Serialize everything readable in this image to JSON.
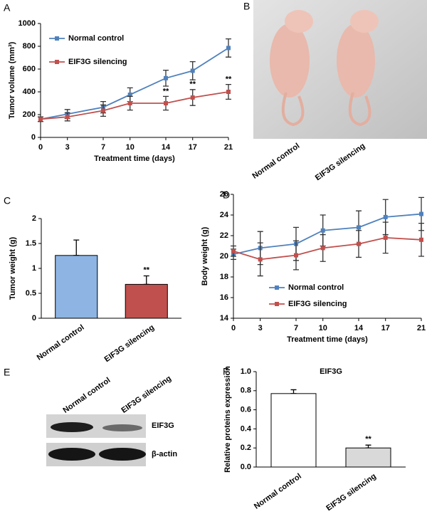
{
  "chart_data": [
    {
      "type": "line",
      "panel": "A",
      "xlabel": "Treatment time (days)",
      "ylabel": "Tumor volume (mm³)",
      "x": [
        0,
        3,
        7,
        10,
        14,
        17,
        21
      ],
      "xlim": [
        0,
        21
      ],
      "xticks": [
        0,
        3,
        7,
        10,
        14,
        17,
        21
      ],
      "ylim": [
        0,
        1000
      ],
      "yticks": [
        0,
        200,
        400,
        600,
        800,
        1000
      ],
      "legend": "upper left",
      "series": [
        {
          "name": "Normal control",
          "color": "#4f81bd",
          "values": [
            160,
            205,
            265,
            375,
            520,
            585,
            785
          ],
          "errors": [
            20,
            40,
            50,
            60,
            70,
            80,
            80
          ]
        },
        {
          "name": "EIF3G silencing",
          "color": "#c0504d",
          "values": [
            160,
            180,
            235,
            300,
            300,
            350,
            400
          ],
          "errors": [
            20,
            35,
            50,
            60,
            60,
            70,
            65
          ],
          "significance": [
            null,
            null,
            null,
            null,
            "**",
            "**",
            "**"
          ]
        }
      ]
    },
    {
      "type": "bar",
      "panel": "C",
      "ylabel": "Tumor weight (g)",
      "categories": [
        "Normal control",
        "EIF3G silencing"
      ],
      "values": [
        1.26,
        0.68
      ],
      "errors": [
        0.31,
        0.17
      ],
      "colors": [
        "#8db4e2",
        "#c0504d"
      ],
      "significance": [
        null,
        "**"
      ],
      "ylim": [
        0,
        2
      ],
      "yticks": [
        0,
        0.5,
        1,
        1.5,
        2
      ]
    },
    {
      "type": "line",
      "panel": "D",
      "xlabel": "Treatment time (days)",
      "ylabel": "Body weight (g)",
      "x": [
        0,
        3,
        7,
        10,
        14,
        17,
        21
      ],
      "xlim": [
        0,
        21
      ],
      "xticks": [
        0,
        3,
        7,
        10,
        14,
        17,
        21
      ],
      "ylim": [
        14,
        26
      ],
      "yticks": [
        14,
        16,
        18,
        20,
        22,
        24,
        26
      ],
      "legend": "lower left",
      "series": [
        {
          "name": "Normal control",
          "color": "#4f81bd",
          "values": [
            20.2,
            20.8,
            21.2,
            22.5,
            22.8,
            23.8,
            24.1
          ],
          "errors": [
            0.5,
            1.6,
            1.6,
            1.5,
            1.6,
            1.7,
            1.6
          ]
        },
        {
          "name": "EIF3G silencing",
          "color": "#c0504d",
          "values": [
            20.5,
            19.7,
            20.1,
            20.8,
            21.2,
            21.8,
            21.6
          ],
          "errors": [
            0.5,
            1.6,
            1.4,
            1.3,
            1.3,
            1.5,
            1.6
          ]
        }
      ]
    },
    {
      "type": "bar",
      "panel": "F",
      "title": "EIF3G",
      "ylabel": "Relative proteins expression",
      "categories": [
        "Normal control",
        "EIF3G silencing"
      ],
      "values": [
        0.77,
        0.2
      ],
      "errors": [
        0.04,
        0.03
      ],
      "colors": [
        "#ffffff",
        "#d9d9d9"
      ],
      "significance": [
        null,
        "**"
      ],
      "ylim": [
        0,
        1
      ],
      "yticks": [
        {
          "value": 0,
          "label": "0.0"
        },
        {
          "value": 0.2,
          "label": "0.2"
        },
        {
          "value": 0.4,
          "label": "0.4"
        },
        {
          "value": 0.6,
          "label": "0.6"
        },
        {
          "value": 0.8,
          "label": "0.8"
        },
        {
          "value": 1,
          "label": "1.0"
        }
      ]
    }
  ],
  "mouse_photo": {
    "panel": "B",
    "labels": [
      "Normal control",
      "EIF3G silencing"
    ]
  },
  "western_blot": {
    "panel": "E",
    "lanes": [
      "Normal control",
      "EIF3G silencing"
    ],
    "bands": [
      "EIF3G",
      "β-actin"
    ]
  }
}
